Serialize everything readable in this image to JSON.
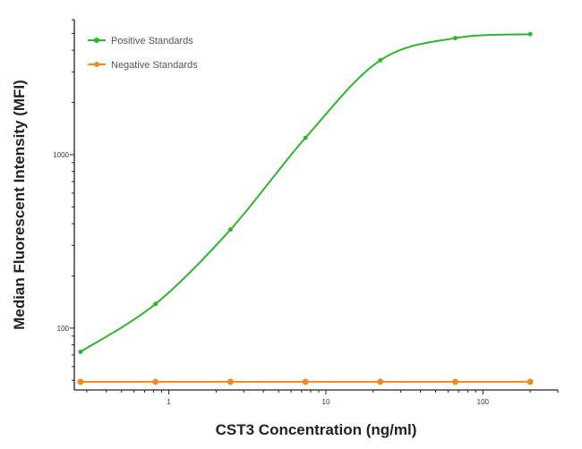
{
  "chart_data": {
    "type": "line",
    "title": "",
    "xlabel": "CST3 Concentration (ng/ml)",
    "ylabel": "Median  Fluorescent Intensity  (MFI)",
    "x_scale": "log",
    "y_scale": "log",
    "xlim": [
      0.25,
      300
    ],
    "ylim": [
      44,
      6000
    ],
    "x_ticks": [
      {
        "value": 1,
        "label": "1"
      },
      {
        "value": 10,
        "label": "10"
      },
      {
        "value": 100,
        "label": "100"
      }
    ],
    "y_ticks": [
      {
        "value": 100,
        "label": "100"
      },
      {
        "value": 1000,
        "label": "1000"
      }
    ],
    "grid": false,
    "legend_position": "top-left",
    "x": [
      0.274,
      0.823,
      2.47,
      7.41,
      22.2,
      66.7,
      200
    ],
    "series": [
      {
        "name": "Positive Standards",
        "color": "#2db52d",
        "values": [
          73,
          138,
          370,
          1250,
          3500,
          4700,
          4950
        ],
        "smooth": true
      },
      {
        "name": "Negative Standards",
        "color": "#f08a24",
        "values": [
          49,
          49,
          49,
          49,
          49,
          49,
          49
        ],
        "smooth": false
      }
    ]
  }
}
